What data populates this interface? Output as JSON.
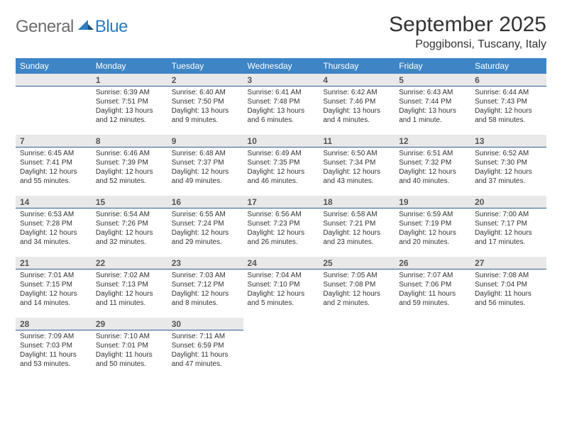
{
  "logo": {
    "text1": "General",
    "text2": "Blue"
  },
  "title": "September 2025",
  "location": "Poggibonsi, Tuscany, Italy",
  "colors": {
    "header_bg": "#3e85c6",
    "header_text": "#ffffff",
    "daynum_bg": "#e9e9e9",
    "daynum_border": "#2f5f8f",
    "logo_gray": "#6d6d6d",
    "logo_blue": "#2b7bbf"
  },
  "weekdays": [
    "Sunday",
    "Monday",
    "Tuesday",
    "Wednesday",
    "Thursday",
    "Friday",
    "Saturday"
  ],
  "start_offset": 1,
  "days": [
    {
      "n": 1,
      "sunrise": "6:39 AM",
      "sunset": "7:51 PM",
      "daylight": "13 hours and 12 minutes."
    },
    {
      "n": 2,
      "sunrise": "6:40 AM",
      "sunset": "7:50 PM",
      "daylight": "13 hours and 9 minutes."
    },
    {
      "n": 3,
      "sunrise": "6:41 AM",
      "sunset": "7:48 PM",
      "daylight": "13 hours and 6 minutes."
    },
    {
      "n": 4,
      "sunrise": "6:42 AM",
      "sunset": "7:46 PM",
      "daylight": "13 hours and 4 minutes."
    },
    {
      "n": 5,
      "sunrise": "6:43 AM",
      "sunset": "7:44 PM",
      "daylight": "13 hours and 1 minute."
    },
    {
      "n": 6,
      "sunrise": "6:44 AM",
      "sunset": "7:43 PM",
      "daylight": "12 hours and 58 minutes."
    },
    {
      "n": 7,
      "sunrise": "6:45 AM",
      "sunset": "7:41 PM",
      "daylight": "12 hours and 55 minutes."
    },
    {
      "n": 8,
      "sunrise": "6:46 AM",
      "sunset": "7:39 PM",
      "daylight": "12 hours and 52 minutes."
    },
    {
      "n": 9,
      "sunrise": "6:48 AM",
      "sunset": "7:37 PM",
      "daylight": "12 hours and 49 minutes."
    },
    {
      "n": 10,
      "sunrise": "6:49 AM",
      "sunset": "7:35 PM",
      "daylight": "12 hours and 46 minutes."
    },
    {
      "n": 11,
      "sunrise": "6:50 AM",
      "sunset": "7:34 PM",
      "daylight": "12 hours and 43 minutes."
    },
    {
      "n": 12,
      "sunrise": "6:51 AM",
      "sunset": "7:32 PM",
      "daylight": "12 hours and 40 minutes."
    },
    {
      "n": 13,
      "sunrise": "6:52 AM",
      "sunset": "7:30 PM",
      "daylight": "12 hours and 37 minutes."
    },
    {
      "n": 14,
      "sunrise": "6:53 AM",
      "sunset": "7:28 PM",
      "daylight": "12 hours and 34 minutes."
    },
    {
      "n": 15,
      "sunrise": "6:54 AM",
      "sunset": "7:26 PM",
      "daylight": "12 hours and 32 minutes."
    },
    {
      "n": 16,
      "sunrise": "6:55 AM",
      "sunset": "7:24 PM",
      "daylight": "12 hours and 29 minutes."
    },
    {
      "n": 17,
      "sunrise": "6:56 AM",
      "sunset": "7:23 PM",
      "daylight": "12 hours and 26 minutes."
    },
    {
      "n": 18,
      "sunrise": "6:58 AM",
      "sunset": "7:21 PM",
      "daylight": "12 hours and 23 minutes."
    },
    {
      "n": 19,
      "sunrise": "6:59 AM",
      "sunset": "7:19 PM",
      "daylight": "12 hours and 20 minutes."
    },
    {
      "n": 20,
      "sunrise": "7:00 AM",
      "sunset": "7:17 PM",
      "daylight": "12 hours and 17 minutes."
    },
    {
      "n": 21,
      "sunrise": "7:01 AM",
      "sunset": "7:15 PM",
      "daylight": "12 hours and 14 minutes."
    },
    {
      "n": 22,
      "sunrise": "7:02 AM",
      "sunset": "7:13 PM",
      "daylight": "12 hours and 11 minutes."
    },
    {
      "n": 23,
      "sunrise": "7:03 AM",
      "sunset": "7:12 PM",
      "daylight": "12 hours and 8 minutes."
    },
    {
      "n": 24,
      "sunrise": "7:04 AM",
      "sunset": "7:10 PM",
      "daylight": "12 hours and 5 minutes."
    },
    {
      "n": 25,
      "sunrise": "7:05 AM",
      "sunset": "7:08 PM",
      "daylight": "12 hours and 2 minutes."
    },
    {
      "n": 26,
      "sunrise": "7:07 AM",
      "sunset": "7:06 PM",
      "daylight": "11 hours and 59 minutes."
    },
    {
      "n": 27,
      "sunrise": "7:08 AM",
      "sunset": "7:04 PM",
      "daylight": "11 hours and 56 minutes."
    },
    {
      "n": 28,
      "sunrise": "7:09 AM",
      "sunset": "7:03 PM",
      "daylight": "11 hours and 53 minutes."
    },
    {
      "n": 29,
      "sunrise": "7:10 AM",
      "sunset": "7:01 PM",
      "daylight": "11 hours and 50 minutes."
    },
    {
      "n": 30,
      "sunrise": "7:11 AM",
      "sunset": "6:59 PM",
      "daylight": "11 hours and 47 minutes."
    }
  ],
  "labels": {
    "sunrise": "Sunrise:",
    "sunset": "Sunset:",
    "daylight": "Daylight:"
  }
}
